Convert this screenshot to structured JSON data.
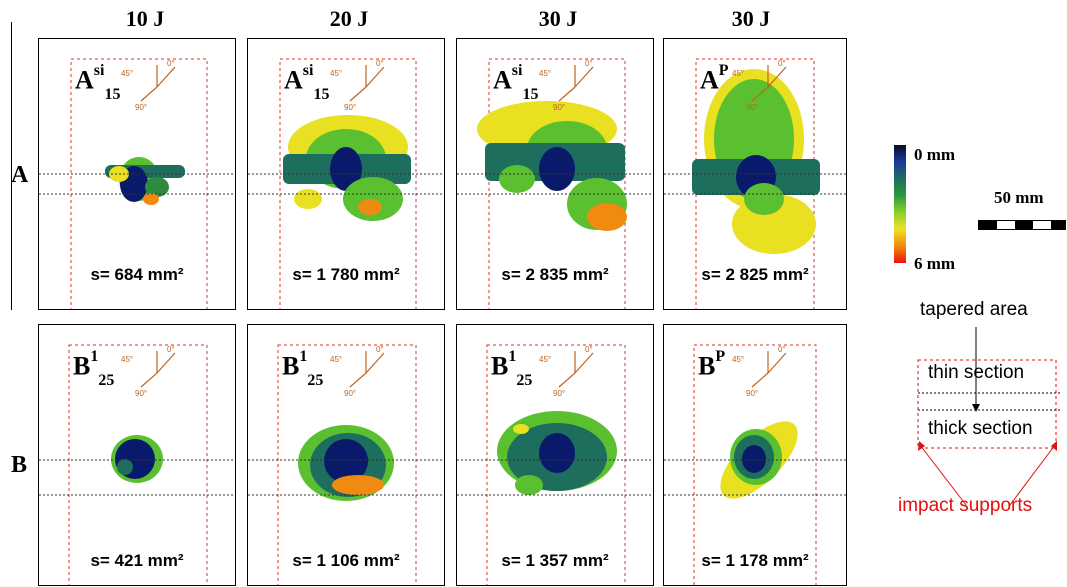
{
  "columns": [
    "10 J",
    "20 J",
    "30 J",
    "30 J"
  ],
  "rows": [
    "A",
    "B"
  ],
  "panels_a": [
    {
      "base": "A",
      "sup": "si",
      "sub": "15",
      "area": "s= 684 mm²"
    },
    {
      "base": "A",
      "sup": "si",
      "sub": "15",
      "area": "s= 1 780 mm²"
    },
    {
      "base": "A",
      "sup": "si",
      "sub": "15",
      "area": "s= 2 835 mm²"
    },
    {
      "base": "A",
      "sup": "P",
      "sub": "",
      "area": "s= 2 825 mm²"
    }
  ],
  "panels_b": [
    {
      "base": "B",
      "sup": "1",
      "sub": "25",
      "area": "s= 421 mm²"
    },
    {
      "base": "B",
      "sup": "1",
      "sub": "25",
      "area": "s= 1 106 mm²"
    },
    {
      "base": "B",
      "sup": "1",
      "sub": "25",
      "area": "s= 1 357 mm²"
    },
    {
      "base": "B",
      "sup": "P",
      "sub": "",
      "area": "s= 1 178 mm²"
    }
  ],
  "directions": {
    "d0": "0°",
    "d45": "45°",
    "d90": "90°"
  },
  "legend": {
    "top": "0 mm",
    "bottom": "6 mm",
    "scale": "50 mm",
    "colors": [
      "#0a0a2a",
      "#1a3a9a",
      "#1e6e5e",
      "#2a9a3a",
      "#8ad030",
      "#f0e020",
      "#f08a10",
      "#f01010"
    ]
  },
  "schematic": {
    "tapered": "tapered area",
    "thin": "thin section",
    "thick": "thick section",
    "supports": "impact supports",
    "support_color": "#e01010"
  }
}
